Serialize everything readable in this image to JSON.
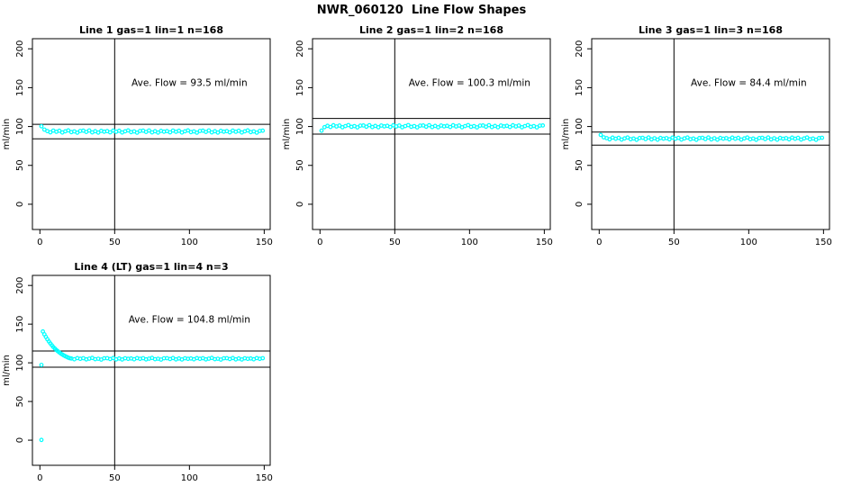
{
  "figure": {
    "title": "NWR_060120  Line Flow Shapes"
  },
  "colors": {
    "points": "#00FFFF",
    "axis": "#000000",
    "background": "#FFFFFF"
  },
  "axes": {
    "y_label": "ml/min",
    "x_ticks": [
      0,
      50,
      100,
      150
    ],
    "y_ticks": [
      0,
      50,
      100,
      150,
      200
    ],
    "xlim": [
      -5,
      154
    ],
    "ylim": [
      -32.5,
      213
    ],
    "grid": false,
    "legend": "none"
  },
  "chart_data": [
    {
      "type": "scatter",
      "title": "Line 1 gas=1 lin=1 n=168",
      "n": 168,
      "annotation": "Ave. Flow =  93.5  ml/min",
      "ave_flow_ml_min": 93.5,
      "vline_x": 50,
      "ref_lines_y": [
        102.9,
        84.2
      ],
      "annotation_xy": [
        100,
        152
      ],
      "x": {
        "start": 1,
        "step": 2,
        "count": 75
      },
      "y": [
        100.3,
        96.0,
        94.1,
        92.6,
        94.8,
        93.3,
        94.5,
        92.3,
        93.8,
        95.0,
        92.8,
        93.7,
        92.1,
        94.3,
        94.6,
        93.0,
        94.9,
        92.5,
        94.0,
        92.2,
        94.4,
        93.4,
        94.1,
        92.6,
        94.8,
        93.3,
        94.5,
        92.3,
        93.8,
        95.0,
        92.8,
        93.7,
        92.1,
        94.3,
        94.6,
        93.0,
        94.9,
        92.5,
        94.0,
        92.2,
        94.4,
        93.4,
        94.1,
        92.6,
        94.8,
        93.3,
        94.5,
        92.3,
        93.8,
        95.0,
        92.8,
        93.7,
        92.1,
        94.3,
        94.6,
        93.0,
        94.9,
        92.5,
        94.0,
        92.2,
        94.4,
        93.4,
        94.1,
        92.6,
        94.8,
        93.3,
        94.5,
        92.3,
        93.8,
        95.0,
        92.8,
        93.7,
        92.1,
        94.3,
        94.6
      ]
    },
    {
      "type": "scatter",
      "title": "Line 2 gas=1 lin=2 n=168",
      "n": 168,
      "annotation": "Ave. Flow =  100.3  ml/min",
      "ave_flow_ml_min": 100.3,
      "vline_x": 50,
      "ref_lines_y": [
        110.3,
        90.3
      ],
      "annotation_xy": [
        100,
        152
      ],
      "x": {
        "start": 1,
        "step": 2,
        "count": 75
      },
      "y": [
        94.6,
        99.2,
        100.9,
        99.4,
        101.6,
        100.1,
        101.3,
        99.1,
        100.6,
        101.8,
        99.6,
        100.5,
        98.9,
        101.1,
        101.4,
        99.8,
        101.7,
        99.3,
        100.8,
        99.0,
        101.2,
        100.2,
        100.9,
        99.4,
        101.6,
        100.1,
        101.3,
        99.1,
        100.6,
        101.8,
        99.6,
        100.5,
        98.9,
        101.1,
        101.4,
        99.8,
        101.7,
        99.3,
        100.8,
        99.0,
        101.2,
        100.2,
        100.9,
        99.4,
        101.6,
        100.1,
        101.3,
        99.1,
        100.6,
        101.8,
        99.6,
        100.5,
        98.9,
        101.1,
        101.4,
        99.8,
        101.7,
        99.3,
        100.8,
        99.0,
        101.2,
        100.2,
        100.9,
        99.4,
        101.6,
        100.1,
        101.3,
        99.1,
        100.6,
        101.8,
        99.6,
        100.5,
        98.9,
        101.1,
        101.4
      ]
    },
    {
      "type": "scatter",
      "title": "Line 3 gas=1 lin=3 n=168",
      "n": 168,
      "annotation": "Ave. Flow =  84.4  ml/min",
      "ave_flow_ml_min": 84.4,
      "vline_x": 50,
      "ref_lines_y": [
        92.8,
        76.0
      ],
      "annotation_xy": [
        100,
        152
      ],
      "x": {
        "start": 1,
        "step": 2,
        "count": 75
      },
      "y": [
        89.2,
        86.1,
        85.0,
        83.5,
        85.7,
        84.2,
        85.4,
        83.2,
        84.7,
        85.9,
        83.7,
        84.6,
        83.0,
        85.2,
        85.5,
        83.9,
        85.8,
        83.4,
        84.9,
        83.1,
        85.3,
        84.3,
        85.0,
        83.5,
        85.7,
        84.2,
        85.4,
        83.2,
        84.7,
        85.9,
        83.7,
        84.6,
        83.0,
        85.2,
        85.5,
        83.9,
        85.8,
        83.4,
        84.9,
        83.1,
        85.3,
        84.3,
        85.0,
        83.5,
        85.7,
        84.2,
        85.4,
        83.2,
        84.7,
        85.9,
        83.7,
        84.6,
        83.0,
        85.2,
        85.5,
        83.9,
        85.8,
        83.4,
        84.9,
        83.1,
        85.3,
        84.3,
        85.0,
        83.5,
        85.7,
        84.2,
        85.4,
        83.2,
        84.7,
        85.9,
        83.7,
        84.6,
        83.0,
        85.2,
        85.5
      ]
    },
    {
      "type": "scatter",
      "title": "Line 4 (LT) gas=1 lin=4 n=3",
      "n": 3,
      "annotation": "Ave. Flow =  104.8  ml/min",
      "ave_flow_ml_min": 104.8,
      "vline_x": 50,
      "ref_lines_y": [
        115.3,
        94.3
      ],
      "annotation_xy": [
        100,
        152
      ],
      "x_list": [
        1,
        1,
        2,
        3,
        4,
        5,
        6,
        7,
        8,
        9,
        10,
        11,
        12,
        13,
        14,
        15,
        16,
        17,
        18,
        19,
        20,
        21,
        23,
        25,
        27,
        29,
        31,
        33,
        35,
        37,
        39,
        41,
        43,
        45,
        47,
        49,
        51,
        53,
        55,
        57,
        59,
        61,
        63,
        65,
        67,
        69,
        71,
        73,
        75,
        77,
        79,
        81,
        83,
        85,
        87,
        89,
        91,
        93,
        95,
        97,
        99,
        101,
        103,
        105,
        107,
        109,
        111,
        113,
        115,
        117,
        119,
        121,
        123,
        125,
        127,
        129,
        131,
        133,
        135,
        137,
        139,
        141,
        143,
        145,
        147,
        149
      ],
      "y": [
        0.3,
        97.2,
        140.5,
        136.8,
        133.5,
        130.4,
        127.6,
        125.0,
        122.6,
        120.4,
        118.4,
        116.6,
        114.9,
        113.4,
        112.0,
        110.7,
        109.6,
        108.5,
        107.6,
        106.7,
        106.0,
        105.6,
        104.6,
        106.1,
        105.1,
        105.9,
        104.4,
        105.4,
        106.3,
        104.7,
        105.3,
        104.2,
        105.8,
        106.0,
        104.9,
        106.2,
        104.5,
        105.6,
        104.3,
        105.8,
        105.1,
        105.6,
        104.6,
        106.1,
        105.1,
        105.9,
        104.4,
        105.4,
        106.3,
        104.7,
        105.3,
        104.2,
        105.8,
        106.0,
        104.9,
        106.2,
        104.5,
        105.6,
        104.3,
        105.8,
        105.1,
        105.6,
        104.6,
        106.1,
        105.1,
        105.9,
        104.4,
        105.4,
        106.3,
        104.7,
        105.3,
        104.2,
        105.8,
        106.0,
        104.9,
        106.2,
        104.5,
        105.6,
        104.3,
        105.8,
        105.1,
        105.6,
        104.6,
        106.1,
        105.1,
        105.9
      ]
    }
  ]
}
